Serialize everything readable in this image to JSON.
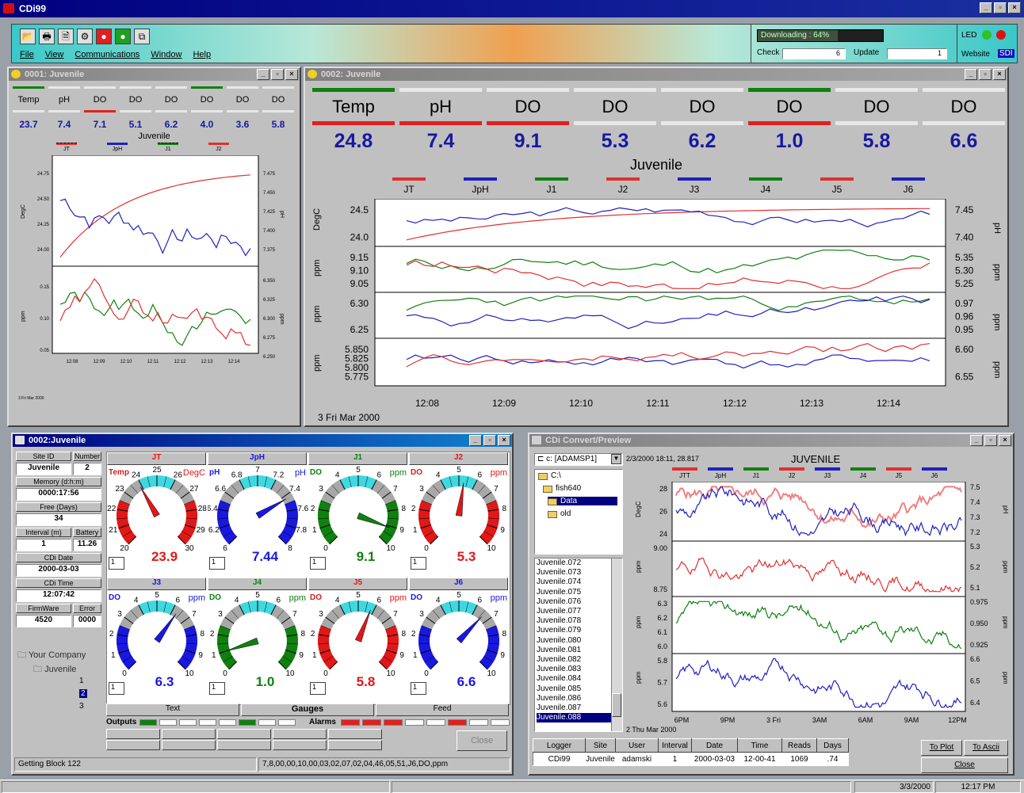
{
  "app": {
    "title": "CDi99"
  },
  "menu": [
    "File",
    "View",
    "Communications",
    "Window",
    "Help"
  ],
  "toolbar": {
    "downloading": "Downloading : 64%",
    "led": "LED",
    "website": "Website",
    "sdi": "SDI",
    "check_label": "Check",
    "check_value": "6",
    "update_label": "Update",
    "update_value": "1"
  },
  "win1": {
    "title": "0001: Juvenile",
    "channels": [
      "Temp",
      "pH",
      "DO",
      "DO",
      "DO",
      "DO",
      "DO",
      "DO"
    ],
    "values": [
      "23.7",
      "7.4",
      "7.1",
      "5.1",
      "6.2",
      "4.0",
      "3.6",
      "5.8"
    ],
    "site": "Juvenile",
    "date": "3 Fri Mar 2000",
    "yticks_top_left": [
      "24.75",
      "24.50",
      "24.25",
      "24.00"
    ],
    "yticks_top_right": [
      "7.475",
      "7.450",
      "7.425",
      "7.400",
      "7.375"
    ],
    "yticks_bot_left": [
      "0.15",
      "0.10",
      "0.05"
    ],
    "yticks_bot_right": [
      "6.350",
      "6.325",
      "6.300",
      "6.275",
      "6.250"
    ],
    "xticks": [
      "12:08",
      "12:09",
      "12:10",
      "12:11",
      "12:12",
      "12:13",
      "12:14"
    ],
    "legend": [
      "JT",
      "JpH",
      "J1",
      "J2"
    ],
    "ylabel_top": "DegC",
    "ylabel_top_r": "pH",
    "ylabel_bot": "ppm",
    "ylabel_bot_r": "ppm"
  },
  "win2": {
    "title": "0002: Juvenile",
    "channels": [
      "Temp",
      "pH",
      "DO",
      "DO",
      "DO",
      "DO",
      "DO",
      "DO"
    ],
    "values": [
      "24.8",
      "7.4",
      "9.1",
      "5.3",
      "6.2",
      "1.0",
      "5.8",
      "6.6"
    ],
    "site": "Juvenile",
    "legend": [
      "JT",
      "JpH",
      "J1",
      "J2",
      "J3",
      "J4",
      "J5",
      "J6"
    ],
    "p1_left": [
      "24.5",
      "24.0"
    ],
    "p1_right": [
      "7.45",
      "7.40"
    ],
    "p2_left": [
      "9.15",
      "9.10",
      "9.05"
    ],
    "p2_right": [
      "5.35",
      "5.30",
      "5.25"
    ],
    "p3_left": [
      "6.30",
      "6.25"
    ],
    "p3_right": [
      "0.97",
      "0.96",
      "0.95"
    ],
    "p4_left": [
      "5.850",
      "5.825",
      "5.800",
      "5.775"
    ],
    "p4_right": [
      "6.60",
      "6.55"
    ],
    "xticks": [
      "12:08",
      "12:09",
      "12:10",
      "12:11",
      "12:12",
      "12:13",
      "12:14"
    ],
    "date": "3 Fri Mar 2000",
    "ylabel_degc": "DegC",
    "ylabel_ph": "pH",
    "ylabel_ppm": "ppm"
  },
  "win3": {
    "title": "0002:Juvenile",
    "fields": [
      [
        "Site ID",
        "Number"
      ],
      [
        "Juvenile",
        "2"
      ],
      [
        "Memory (d:h:m)"
      ],
      [
        "0000:17:56"
      ],
      [
        "Free (Days)"
      ],
      [
        "34"
      ],
      [
        "Interval (m)",
        "Battery"
      ],
      [
        "1",
        "11.26"
      ],
      [
        "CDi Date"
      ],
      [
        "2000-03-03"
      ],
      [
        "CDi Time"
      ],
      [
        "12:07:42"
      ],
      [
        "FirmWare",
        "Error"
      ],
      [
        "4520",
        "0000"
      ]
    ],
    "tree": [
      "Your Company",
      "Juvenile",
      "1",
      "2",
      "3"
    ],
    "gauges": [
      {
        "name": "JT",
        "unit": "DegC",
        "lbl": "Temp",
        "value": "23.9",
        "color": "#e01818",
        "ticks": [
          "20",
          "21",
          "22",
          "23",
          "24",
          "25",
          "26",
          "27",
          "28",
          "29",
          "30"
        ],
        "pct": 0.39
      },
      {
        "name": "JpH",
        "unit": "pH",
        "lbl": "pH",
        "value": "7.44",
        "color": "#1818e0",
        "ticks": [
          "6",
          "6.2",
          "6.4",
          "6.6",
          "6.8",
          "7",
          "7.2",
          "7.4",
          "7.6",
          "7.8",
          "8"
        ],
        "pct": 0.72
      },
      {
        "name": "J1",
        "unit": "ppm",
        "lbl": "DO",
        "value": "9.1",
        "color": "#108010",
        "ticks": [
          "0",
          "1",
          "2",
          "3",
          "4",
          "5",
          "6",
          "7",
          "8",
          "9",
          "10"
        ],
        "pct": 0.91
      },
      {
        "name": "J2",
        "unit": "ppm",
        "lbl": "DO",
        "value": "5.3",
        "color": "#e01818",
        "ticks": [
          "0",
          "1",
          "2",
          "3",
          "4",
          "5",
          "6",
          "7",
          "8",
          "9",
          "10"
        ],
        "pct": 0.53
      },
      {
        "name": "J3",
        "unit": "ppm",
        "lbl": "DO",
        "value": "6.3",
        "color": "#1818e0",
        "ticks": [
          "0",
          "1",
          "2",
          "3",
          "4",
          "5",
          "6",
          "7",
          "8",
          "9",
          "10"
        ],
        "pct": 0.63
      },
      {
        "name": "J4",
        "unit": "ppm",
        "lbl": "DO",
        "value": "1.0",
        "color": "#108010",
        "ticks": [
          "0",
          "1",
          "2",
          "3",
          "4",
          "5",
          "6",
          "7",
          "8",
          "9",
          "10"
        ],
        "pct": 0.1
      },
      {
        "name": "J5",
        "unit": "ppm",
        "lbl": "DO",
        "value": "5.8",
        "color": "#e01818",
        "ticks": [
          "0",
          "1",
          "2",
          "3",
          "4",
          "5",
          "6",
          "7",
          "8",
          "9",
          "10"
        ],
        "pct": 0.58
      },
      {
        "name": "J6",
        "unit": "ppm",
        "lbl": "DO",
        "value": "6.6",
        "color": "#1818e0",
        "ticks": [
          "0",
          "1",
          "2",
          "3",
          "4",
          "5",
          "6",
          "7",
          "8",
          "9",
          "10"
        ],
        "pct": 0.66
      }
    ],
    "selector": "1",
    "tabs": [
      "Text",
      "Gauges",
      "Feed"
    ],
    "outputs": "Outputs",
    "alarms": "Alarms",
    "close": "Close",
    "status_left": "Getting Block 122",
    "status_right": "7,8,00,00,10,00,03,02,07,02,04,46,05,51,J6,DO,ppm"
  },
  "win4": {
    "title": "CDi Convert/Preview",
    "drive": "c: [ADAMSP1]",
    "folders": [
      "C:\\",
      "fish640",
      "Data",
      "old"
    ],
    "files": [
      "Juvenile.072",
      "Juvenile.073",
      "Juvenile.074",
      "Juvenile.075",
      "Juvenile.076",
      "Juvenile.077",
      "Juvenile.078",
      "Juvenile.079",
      "Juvenile.080",
      "Juvenile.081",
      "Juvenile.082",
      "Juvenile.083",
      "Juvenile.084",
      "Juvenile.085",
      "Juvenile.086",
      "Juvenile.087",
      "Juvenile.088"
    ],
    "header": "2/3/2000 18:11, 28.817",
    "chart_title": "JUVENILE",
    "legend": [
      "JTT",
      "JpH",
      "J1",
      "J2",
      "J3",
      "J4",
      "J5",
      "J6"
    ],
    "p1_left": [
      "28",
      "26",
      "24"
    ],
    "p1_right": [
      "7.5",
      "7.4",
      "7.3",
      "7.2"
    ],
    "p2_left": [
      "9.00",
      "8.75"
    ],
    "p2_right": [
      "5.3",
      "5.2",
      "5.1"
    ],
    "p3_left": [
      "6.3",
      "6.2",
      "6.1",
      "6.0"
    ],
    "p3_right": [
      "0.975",
      "0.950",
      "0.925"
    ],
    "p4_left": [
      "5.8",
      "5.7",
      "5.6"
    ],
    "p4_right": [
      "6.6",
      "6.5",
      "6.4"
    ],
    "xticks": [
      "6PM",
      "9PM",
      "3 Fri",
      "3AM",
      "6AM",
      "9AM",
      "12PM"
    ],
    "date": "2 Thu Mar 2000",
    "ylabel_degc": "DegC",
    "ylabel_ph": "pH",
    "ylabel_ppm": "ppm",
    "table_headers": [
      "Logger",
      "Site",
      "User",
      "Interval",
      "Date",
      "Time",
      "Reads",
      "Days"
    ],
    "table_values": [
      "CDi99",
      "Juvenile",
      "adamski",
      "1",
      "2000-03-03",
      "12-00-41",
      "1069",
      ".74"
    ],
    "buttons": [
      "To Plot",
      "To Ascii",
      "Close"
    ]
  },
  "taskbar": {
    "date": "3/3/2000",
    "time": "12:17 PM"
  }
}
